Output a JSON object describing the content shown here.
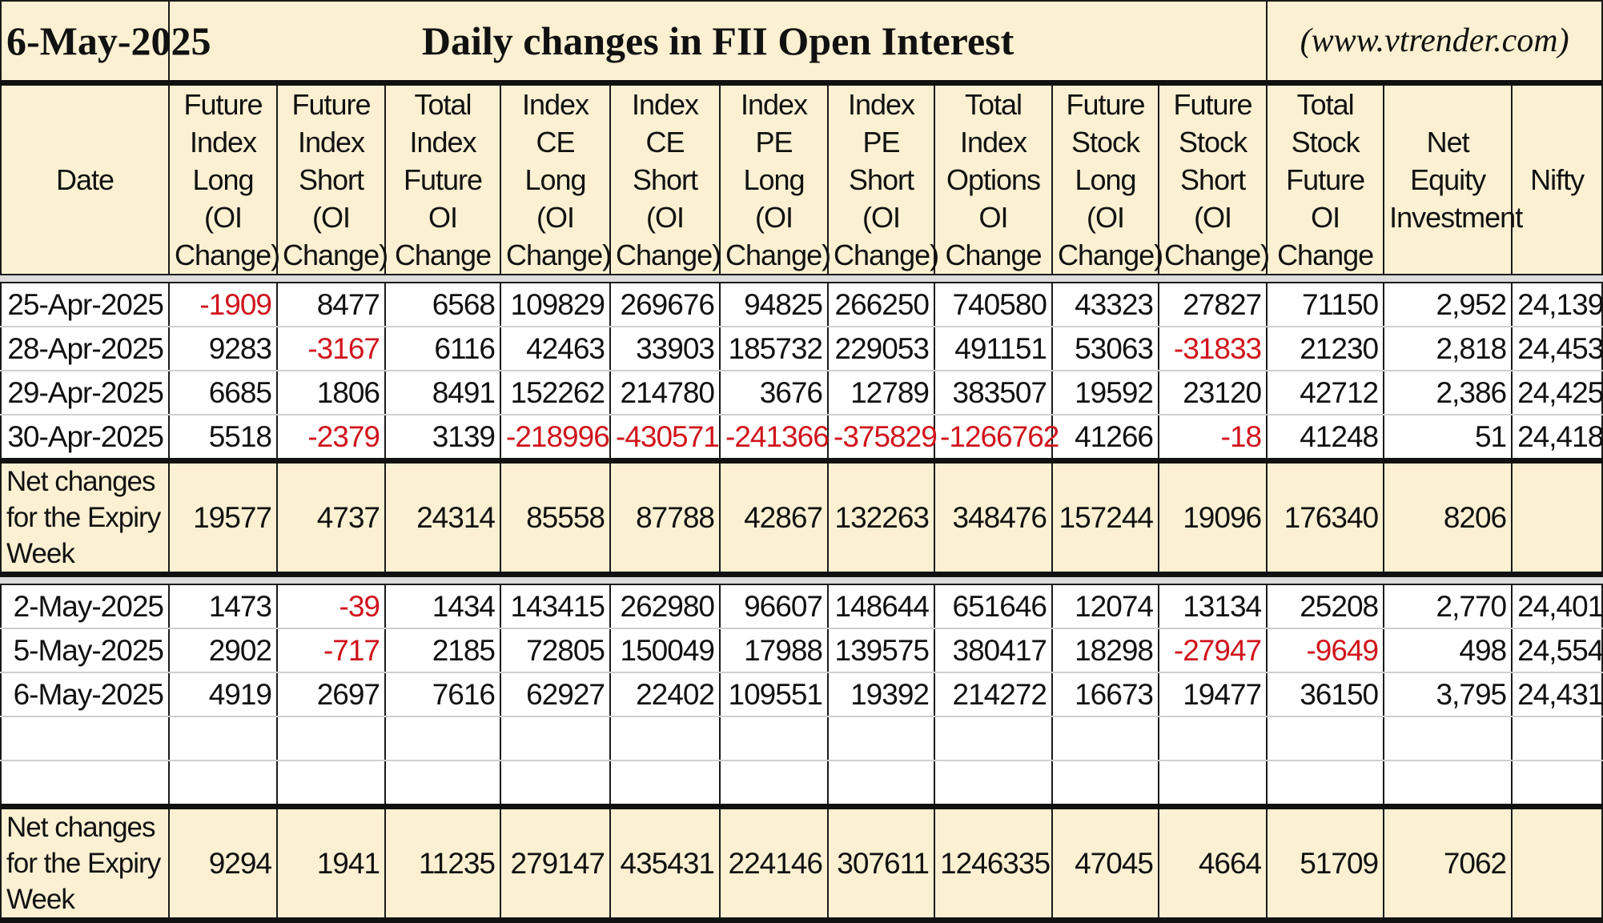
{
  "header": {
    "date": "6-May-2025",
    "title": "Daily changes in FII Open Interest",
    "site": "(www.vtrender.com)"
  },
  "columns": [
    "Date",
    "Future Index Long (OI Change)",
    "Future Index Short (OI Change)",
    "Total Index Future OI Change",
    "Index CE Long (OI Change)",
    "Index CE Short (OI Change)",
    "Index PE Long (OI Change)",
    "Index PE Short (OI Change)",
    "Total Index Options OI Change",
    "Future Stock Long (OI Change)",
    "Future Stock Short (OI Change)",
    "Total Stock Future OI Change",
    "Net Equity Investment",
    "Nifty"
  ],
  "week1": {
    "rows": [
      [
        "25-Apr-2025",
        "-1909",
        "8477",
        "6568",
        "109829",
        "269676",
        "94825",
        "266250",
        "740580",
        "43323",
        "27827",
        "71150",
        "2,952",
        "24,139"
      ],
      [
        "28-Apr-2025",
        "9283",
        "-3167",
        "6116",
        "42463",
        "33903",
        "185732",
        "229053",
        "491151",
        "53063",
        "-31833",
        "21230",
        "2,818",
        "24,453"
      ],
      [
        "29-Apr-2025",
        "6685",
        "1806",
        "8491",
        "152262",
        "214780",
        "3676",
        "12789",
        "383507",
        "19592",
        "23120",
        "42712",
        "2,386",
        "24,425"
      ],
      [
        "30-Apr-2025",
        "5518",
        "-2379",
        "3139",
        "-218996",
        "-430571",
        "-241366",
        "-375829",
        "-1266762",
        "41266",
        "-18",
        "41248",
        "51",
        "24,418"
      ]
    ],
    "total": [
      "Net changes for the Expiry Week",
      "19577",
      "4737",
      "24314",
      "85558",
      "87788",
      "42867",
      "132263",
      "348476",
      "157244",
      "19096",
      "176340",
      "8206",
      ""
    ]
  },
  "week2": {
    "rows": [
      [
        "2-May-2025",
        "1473",
        "-39",
        "1434",
        "143415",
        "262980",
        "96607",
        "148644",
        "651646",
        "12074",
        "13134",
        "25208",
        "2,770",
        "24,401"
      ],
      [
        "5-May-2025",
        "2902",
        "-717",
        "2185",
        "72805",
        "150049",
        "17988",
        "139575",
        "380417",
        "18298",
        "-27947",
        "-9649",
        "498",
        "24,554"
      ],
      [
        "6-May-2025",
        "4919",
        "2697",
        "7616",
        "62927",
        "22402",
        "109551",
        "19392",
        "214272",
        "16673",
        "19477",
        "36150",
        "3,795",
        "24,431"
      ]
    ],
    "total": [
      "Net changes for the Expiry Week",
      "9294",
      "1941",
      "11235",
      "279147",
      "435431",
      "224146",
      "307611",
      "1246335",
      "47045",
      "4664",
      "51709",
      "7062",
      ""
    ]
  },
  "colors": {
    "header_bg": "#fbf0d2",
    "negative": "#d0141c",
    "border": "#1a1a1a"
  }
}
